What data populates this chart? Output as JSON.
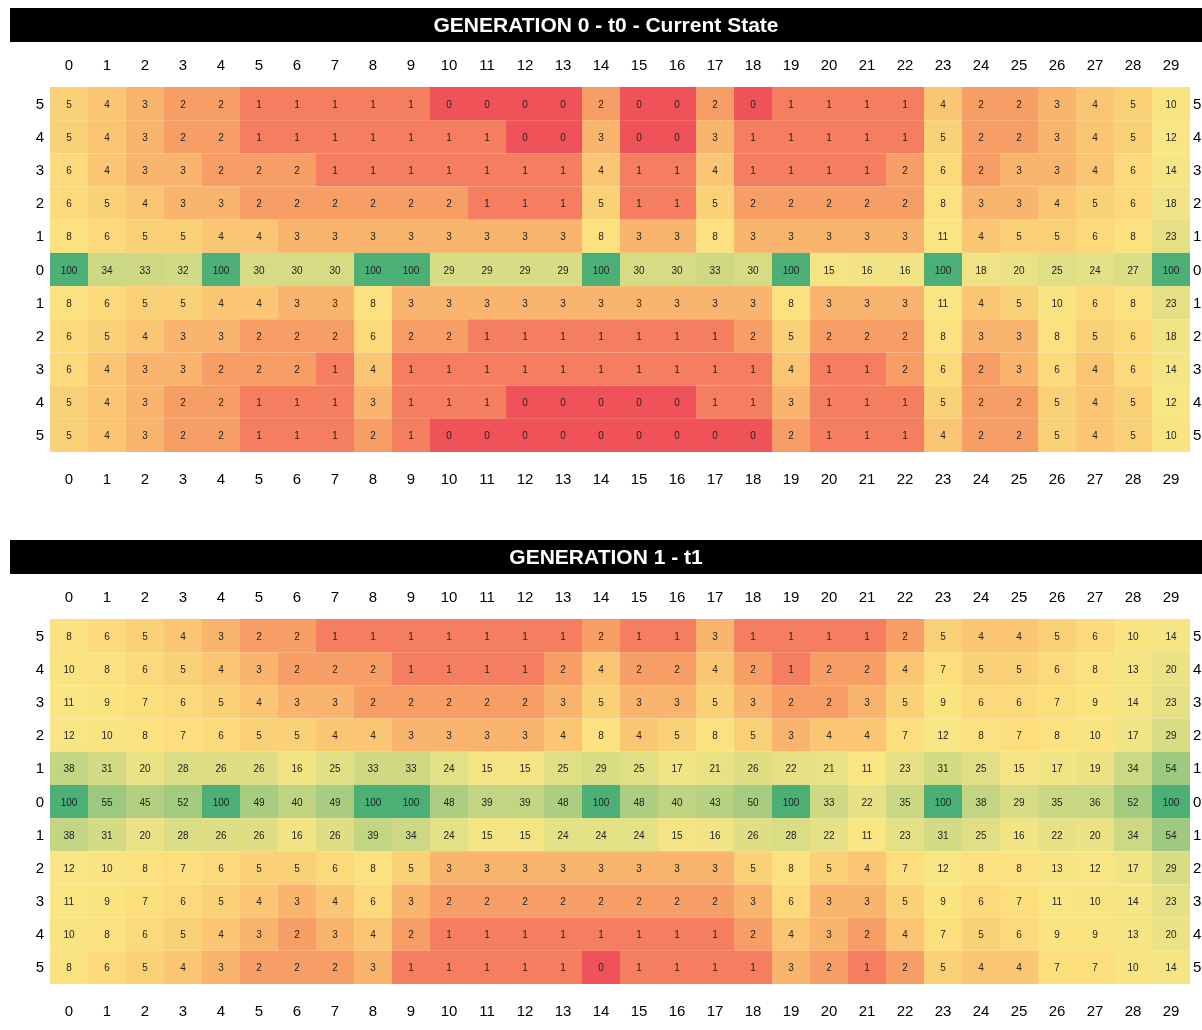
{
  "chart_data": [
    {
      "type": "heatmap",
      "title": "GENERATION 0 - t0 - Current State",
      "data_labels": true,
      "categories": [
        "0",
        "1",
        "2",
        "3",
        "4",
        "5",
        "6",
        "7",
        "8",
        "9",
        "10",
        "11",
        "12",
        "13",
        "14",
        "15",
        "16",
        "17",
        "18",
        "19",
        "20",
        "21",
        "22",
        "23",
        "24",
        "25",
        "26",
        "27",
        "28",
        "29"
      ],
      "y_categories": [
        "5",
        "4",
        "3",
        "2",
        "1",
        "0",
        "1",
        "2",
        "3",
        "4",
        "5"
      ],
      "y2_categories": [
        "5",
        "4",
        "3",
        "2",
        "1",
        "0",
        "1",
        "2",
        "3",
        "4",
        "5"
      ],
      "cells": [
        [
          5,
          4,
          3,
          2,
          2,
          1,
          1,
          1,
          1,
          1,
          0,
          0,
          0,
          0,
          2,
          0,
          0,
          2,
          0,
          1,
          1,
          1,
          1,
          4,
          2,
          2,
          3,
          4,
          5,
          10
        ],
        [
          5,
          4,
          3,
          2,
          2,
          1,
          1,
          1,
          1,
          1,
          1,
          1,
          0,
          0,
          3,
          0,
          0,
          3,
          1,
          1,
          1,
          1,
          1,
          5,
          2,
          2,
          3,
          4,
          5,
          12
        ],
        [
          6,
          4,
          3,
          3,
          2,
          2,
          2,
          1,
          1,
          1,
          1,
          1,
          1,
          1,
          4,
          1,
          1,
          4,
          1,
          1,
          1,
          1,
          2,
          6,
          2,
          3,
          3,
          4,
          6,
          14
        ],
        [
          6,
          5,
          4,
          3,
          3,
          2,
          2,
          2,
          2,
          2,
          2,
          1,
          1,
          1,
          5,
          1,
          1,
          5,
          2,
          2,
          2,
          2,
          2,
          8,
          3,
          3,
          4,
          5,
          6,
          18
        ],
        [
          8,
          6,
          5,
          5,
          4,
          4,
          3,
          3,
          3,
          3,
          3,
          3,
          3,
          3,
          8,
          3,
          3,
          8,
          3,
          3,
          3,
          3,
          3,
          11,
          4,
          5,
          5,
          6,
          8,
          23
        ],
        [
          100,
          34,
          33,
          32,
          100,
          30,
          30,
          30,
          100,
          100,
          29,
          29,
          29,
          29,
          100,
          30,
          30,
          33,
          30,
          100,
          15,
          16,
          16,
          100,
          18,
          20,
          25,
          24,
          27,
          100
        ],
        [
          8,
          6,
          5,
          5,
          4,
          4,
          3,
          3,
          8,
          3,
          3,
          3,
          3,
          3,
          3,
          3,
          3,
          3,
          3,
          8,
          3,
          3,
          3,
          11,
          4,
          5,
          10,
          6,
          8,
          23
        ],
        [
          6,
          5,
          4,
          3,
          3,
          2,
          2,
          2,
          6,
          2,
          2,
          1,
          1,
          1,
          1,
          1,
          1,
          1,
          2,
          5,
          2,
          2,
          2,
          8,
          3,
          3,
          8,
          5,
          6,
          18
        ],
        [
          6,
          4,
          3,
          3,
          2,
          2,
          2,
          1,
          4,
          1,
          1,
          1,
          1,
          1,
          1,
          1,
          1,
          1,
          1,
          4,
          1,
          1,
          2,
          6,
          2,
          3,
          6,
          4,
          6,
          14
        ],
        [
          5,
          4,
          3,
          2,
          2,
          1,
          1,
          1,
          3,
          1,
          1,
          1,
          0,
          0,
          0,
          0,
          0,
          1,
          1,
          3,
          1,
          1,
          1,
          5,
          2,
          2,
          5,
          4,
          5,
          12
        ],
        [
          5,
          4,
          3,
          2,
          2,
          1,
          1,
          1,
          2,
          1,
          0,
          0,
          0,
          0,
          0,
          0,
          0,
          0,
          0,
          2,
          1,
          1,
          1,
          4,
          2,
          2,
          5,
          4,
          5,
          10
        ]
      ]
    },
    {
      "type": "heatmap",
      "title": "GENERATION 1 - t1",
      "data_labels": true,
      "categories": [
        "0",
        "1",
        "2",
        "3",
        "4",
        "5",
        "6",
        "7",
        "8",
        "9",
        "10",
        "11",
        "12",
        "13",
        "14",
        "15",
        "16",
        "17",
        "18",
        "19",
        "20",
        "21",
        "22",
        "23",
        "24",
        "25",
        "26",
        "27",
        "28",
        "29"
      ],
      "y_categories": [
        "5",
        "4",
        "3",
        "2",
        "1",
        "0",
        "1",
        "2",
        "3",
        "4",
        "5"
      ],
      "y2_categories": [
        "5",
        "4",
        "3",
        "2",
        "1",
        "0",
        "1",
        "2",
        "3",
        "4",
        "5"
      ],
      "cells": [
        [
          8,
          6,
          5,
          4,
          3,
          2,
          2,
          1,
          1,
          1,
          1,
          1,
          1,
          1,
          2,
          1,
          1,
          3,
          1,
          1,
          1,
          1,
          2,
          5,
          4,
          4,
          5,
          6,
          10,
          14
        ],
        [
          10,
          8,
          6,
          5,
          4,
          3,
          2,
          2,
          2,
          1,
          1,
          1,
          1,
          2,
          4,
          2,
          2,
          4,
          2,
          1,
          2,
          2,
          4,
          7,
          5,
          5,
          6,
          8,
          13,
          20
        ],
        [
          11,
          9,
          7,
          6,
          5,
          4,
          3,
          3,
          2,
          2,
          2,
          2,
          2,
          3,
          5,
          3,
          3,
          5,
          3,
          2,
          2,
          3,
          5,
          9,
          6,
          6,
          7,
          9,
          14,
          23
        ],
        [
          12,
          10,
          8,
          7,
          6,
          5,
          5,
          4,
          4,
          3,
          3,
          3,
          3,
          4,
          8,
          4,
          5,
          8,
          5,
          3,
          4,
          4,
          7,
          12,
          8,
          7,
          8,
          10,
          17,
          29
        ],
        [
          38,
          31,
          20,
          28,
          26,
          26,
          16,
          25,
          33,
          33,
          24,
          15,
          15,
          25,
          29,
          25,
          17,
          21,
          26,
          22,
          21,
          11,
          23,
          31,
          25,
          15,
          17,
          19,
          34,
          54
        ],
        [
          100,
          55,
          45,
          52,
          100,
          49,
          40,
          49,
          100,
          100,
          48,
          39,
          39,
          48,
          100,
          48,
          40,
          43,
          50,
          100,
          33,
          22,
          35,
          100,
          38,
          29,
          35,
          36,
          52,
          100
        ],
        [
          38,
          31,
          20,
          28,
          26,
          26,
          16,
          26,
          39,
          34,
          24,
          15,
          15,
          24,
          24,
          24,
          15,
          16,
          26,
          28,
          22,
          11,
          23,
          31,
          25,
          16,
          22,
          20,
          34,
          54
        ],
        [
          12,
          10,
          8,
          7,
          6,
          5,
          5,
          6,
          8,
          5,
          3,
          3,
          3,
          3,
          3,
          3,
          3,
          3,
          5,
          8,
          5,
          4,
          7,
          12,
          8,
          8,
          13,
          12,
          17,
          29
        ],
        [
          11,
          9,
          7,
          6,
          5,
          4,
          3,
          4,
          6,
          3,
          2,
          2,
          2,
          2,
          2,
          2,
          2,
          2,
          3,
          6,
          3,
          3,
          5,
          9,
          6,
          7,
          11,
          10,
          14,
          23
        ],
        [
          10,
          8,
          6,
          5,
          4,
          3,
          2,
          3,
          4,
          2,
          1,
          1,
          1,
          1,
          1,
          1,
          1,
          1,
          2,
          4,
          3,
          2,
          4,
          7,
          5,
          6,
          9,
          9,
          13,
          20
        ],
        [
          8,
          6,
          5,
          4,
          3,
          2,
          2,
          2,
          3,
          1,
          1,
          1,
          1,
          1,
          0,
          1,
          1,
          1,
          1,
          3,
          2,
          1,
          2,
          5,
          4,
          4,
          7,
          7,
          10,
          14
        ]
      ]
    }
  ]
}
